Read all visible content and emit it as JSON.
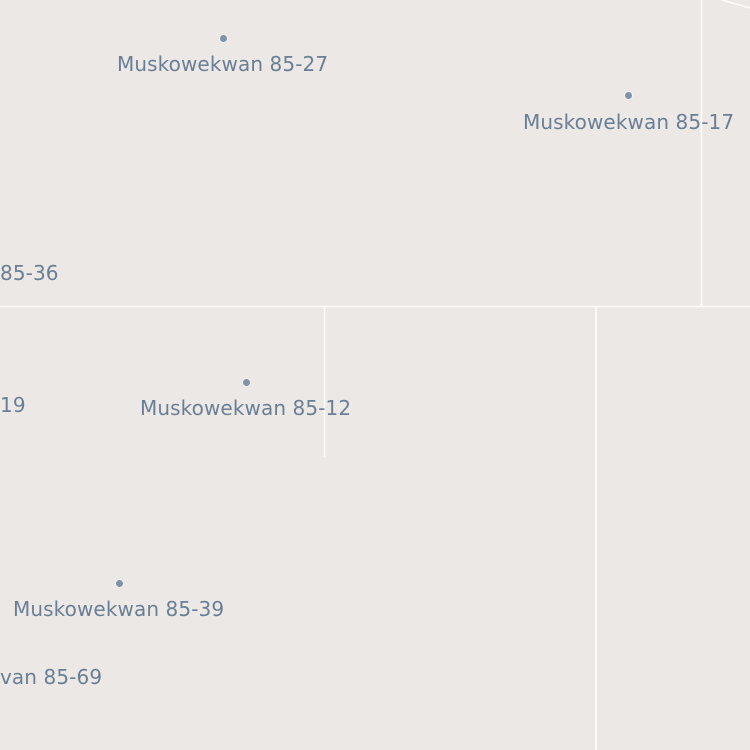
{
  "map": {
    "background_color": "#ece8e5",
    "boundary_color": "#ffffff",
    "label_color": "#6a7f95",
    "marker_color": "#7f92a6"
  },
  "places": [
    {
      "id": "muskowekwan-85-27",
      "label": "Muskowekwan 85-27",
      "has_marker": true
    },
    {
      "id": "muskowekwan-85-17",
      "label": "Muskowekwan 85-17",
      "has_marker": true
    },
    {
      "id": "muskowekwan-85-36",
      "label": "85-36",
      "has_marker": false
    },
    {
      "id": "muskowekwan-85-19",
      "label": "19",
      "has_marker": false
    },
    {
      "id": "muskowekwan-85-12",
      "label": "Muskowekwan 85-12",
      "has_marker": true
    },
    {
      "id": "muskowekwan-85-39",
      "label": "Muskowekwan 85-39",
      "has_marker": true
    },
    {
      "id": "muskowekwan-85-69",
      "label": "van 85-69",
      "has_marker": false
    }
  ]
}
